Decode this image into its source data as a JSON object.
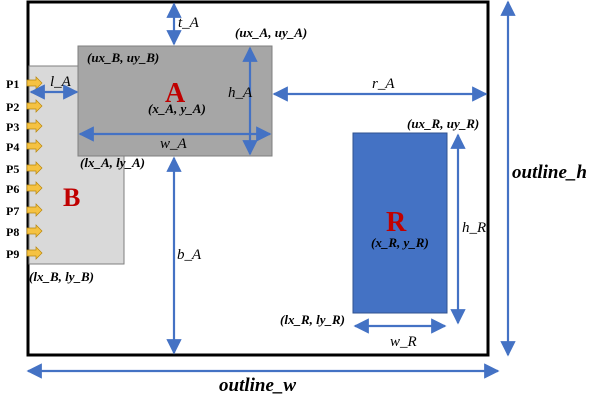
{
  "colors": {
    "outline": "#000000",
    "block_a_fill": "#a6a6a6",
    "block_b_fill": "#d9d9d9",
    "block_r_fill": "#4472c4",
    "block_label": "#c00000",
    "dimension_arrow": "#4472c4",
    "pin_arrow": "#f5c242"
  },
  "outline": {
    "width_label": "outline_w",
    "height_label": "outline_h"
  },
  "block_a": {
    "name": "A",
    "center": "(x_A, y_A)",
    "upper_corner": "(ux_A, uy_A)",
    "lower_corner": "(lx_A, ly_A)",
    "width": "w_A",
    "height": "h_A",
    "top_gap": "t_A",
    "left_gap": "l_A",
    "right_gap": "r_A",
    "bottom_gap": "b_A"
  },
  "block_b": {
    "name": "B",
    "upper_corner": "(ux_B, uy_B)",
    "lower_corner": "(lx_B, ly_B)",
    "pins": [
      "P1",
      "P2",
      "P3",
      "P4",
      "P5",
      "P6",
      "P7",
      "P8",
      "P9"
    ]
  },
  "block_r": {
    "name": "R",
    "center": "(x_R, y_R)",
    "upper_corner": "(ux_R, uy_R)",
    "lower_corner": "(lx_R, ly_R)",
    "width": "w_R",
    "height": "h_R"
  }
}
